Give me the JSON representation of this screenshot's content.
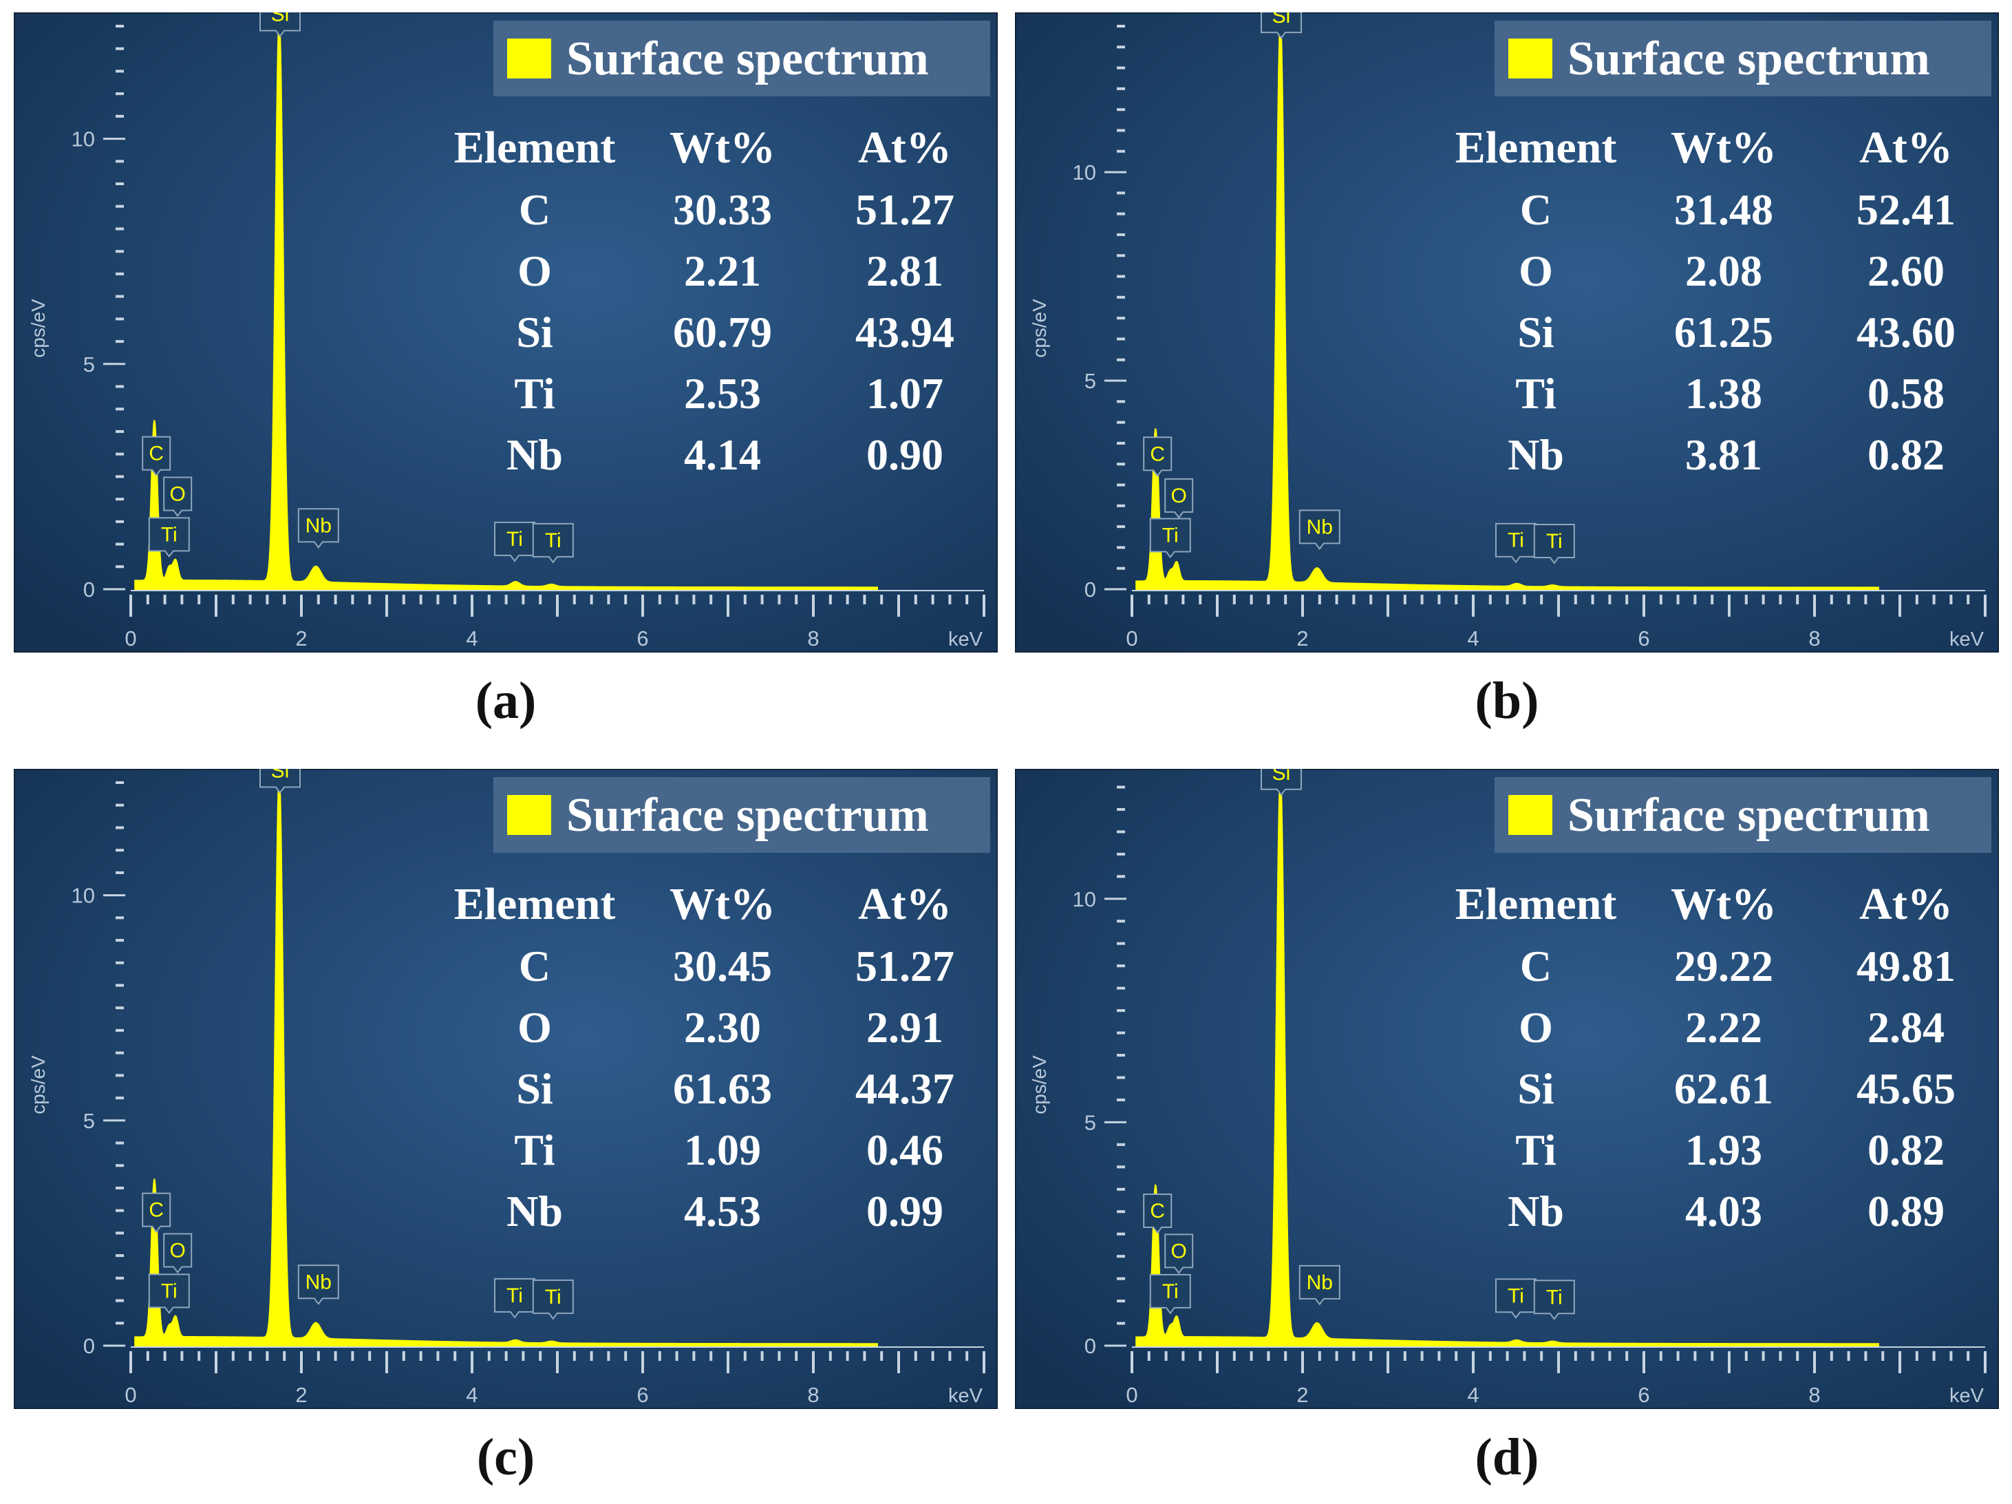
{
  "colors": {
    "background_center": "#2f5c8c",
    "background_edge": "#143254",
    "spectrum": "#ffff00",
    "legend_box": "#4a6a8e",
    "tag_fill": "#1d3f62",
    "tag_stroke": "#8fa6bd"
  },
  "chart_data": [
    {
      "id": "a",
      "type": "line",
      "caption": "(a)",
      "legend": "Surface spectrum",
      "xlabel": "keV",
      "ylabel": "cps/eV",
      "xlim": [
        0,
        10
      ],
      "ylim": [
        0,
        12.5
      ],
      "x_ticks": [
        "0",
        "2",
        "4",
        "6",
        "8"
      ],
      "y_ticks": [
        "0",
        "5",
        "10"
      ],
      "peaks": [
        {
          "label": "C",
          "x": 0.277,
          "y": 3.55,
          "width": 0.035
        },
        {
          "label": "O",
          "x": 0.525,
          "y": 0.45,
          "width": 0.03
        },
        {
          "label": "Ti",
          "x": 0.452,
          "y": 0.3,
          "width": 0.03
        },
        {
          "label": "Si",
          "x": 1.74,
          "y": 12.5,
          "width": 0.045
        },
        {
          "label": "Nb",
          "x": 2.17,
          "y": 0.35,
          "width": 0.06
        },
        {
          "label": "Ti",
          "x": 4.51,
          "y": 0.1,
          "width": 0.05
        },
        {
          "label": "Ti",
          "x": 4.93,
          "y": 0.05,
          "width": 0.05
        }
      ],
      "peak_tags": [
        {
          "label": "C",
          "x": 0.3,
          "y": 2.65
        },
        {
          "label": "O",
          "x": 0.55,
          "y": 1.75
        },
        {
          "label": "Ti",
          "x": 0.45,
          "y": 0.85
        },
        {
          "label": "Si",
          "x": 1.75,
          "y": 12.4
        },
        {
          "label": "Nb",
          "x": 2.2,
          "y": 1.05
        },
        {
          "label": "Ti",
          "x": 4.5,
          "y": 0.75
        },
        {
          "label": "Ti",
          "x": 4.95,
          "y": 0.72
        }
      ],
      "table": {
        "headers": [
          "Element",
          "Wt%",
          "At%"
        ],
        "rows": [
          [
            "C",
            "30.33",
            "51.27"
          ],
          [
            "O",
            "2.21",
            "2.81"
          ],
          [
            "Si",
            "60.79",
            "43.94"
          ],
          [
            "Ti",
            "2.53",
            "1.07"
          ],
          [
            "Nb",
            "4.14",
            "0.90"
          ]
        ]
      }
    },
    {
      "id": "b",
      "type": "line",
      "caption": "(b)",
      "legend": "Surface spectrum",
      "xlabel": "keV",
      "ylabel": "cps/eV",
      "xlim": [
        0,
        10
      ],
      "ylim": [
        0,
        13.5
      ],
      "x_ticks": [
        "0",
        "2",
        "4",
        "6",
        "8"
      ],
      "y_ticks": [
        "0",
        "5",
        "10"
      ],
      "peaks": [
        {
          "label": "C",
          "x": 0.277,
          "y": 3.65,
          "width": 0.035
        },
        {
          "label": "O",
          "x": 0.525,
          "y": 0.45,
          "width": 0.03
        },
        {
          "label": "Ti",
          "x": 0.452,
          "y": 0.25,
          "width": 0.03
        },
        {
          "label": "Si",
          "x": 1.74,
          "y": 13.5,
          "width": 0.045
        },
        {
          "label": "Nb",
          "x": 2.17,
          "y": 0.35,
          "width": 0.06
        },
        {
          "label": "Ti",
          "x": 4.51,
          "y": 0.07,
          "width": 0.05
        },
        {
          "label": "Ti",
          "x": 4.93,
          "y": 0.04,
          "width": 0.05
        }
      ],
      "peak_tags": [
        {
          "label": "C",
          "x": 0.3,
          "y": 2.85
        },
        {
          "label": "O",
          "x": 0.55,
          "y": 1.85
        },
        {
          "label": "Ti",
          "x": 0.45,
          "y": 0.9
        },
        {
          "label": "Si",
          "x": 1.75,
          "y": 13.35
        },
        {
          "label": "Nb",
          "x": 2.2,
          "y": 1.1
        },
        {
          "label": "Ti",
          "x": 4.5,
          "y": 0.78
        },
        {
          "label": "Ti",
          "x": 4.95,
          "y": 0.76
        }
      ],
      "table": {
        "headers": [
          "Element",
          "Wt%",
          "At%"
        ],
        "rows": [
          [
            "C",
            "31.48",
            "52.41"
          ],
          [
            "O",
            "2.08",
            "2.60"
          ],
          [
            "Si",
            "61.25",
            "43.60"
          ],
          [
            "Ti",
            "1.38",
            "0.58"
          ],
          [
            "Nb",
            "3.81",
            "0.82"
          ]
        ]
      }
    },
    {
      "id": "c",
      "type": "line",
      "caption": "(c)",
      "legend": "Surface spectrum",
      "xlabel": "keV",
      "ylabel": "cps/eV",
      "xlim": [
        0,
        10
      ],
      "ylim": [
        0,
        12.5
      ],
      "x_ticks": [
        "0",
        "2",
        "4",
        "6",
        "8"
      ],
      "y_ticks": [
        "0",
        "5",
        "10"
      ],
      "peaks": [
        {
          "label": "C",
          "x": 0.277,
          "y": 3.5,
          "width": 0.035
        },
        {
          "label": "O",
          "x": 0.525,
          "y": 0.45,
          "width": 0.03
        },
        {
          "label": "Ti",
          "x": 0.452,
          "y": 0.25,
          "width": 0.03
        },
        {
          "label": "Si",
          "x": 1.74,
          "y": 12.5,
          "width": 0.045
        },
        {
          "label": "Nb",
          "x": 2.17,
          "y": 0.35,
          "width": 0.06
        },
        {
          "label": "Ti",
          "x": 4.51,
          "y": 0.06,
          "width": 0.05
        },
        {
          "label": "Ti",
          "x": 4.93,
          "y": 0.04,
          "width": 0.05
        }
      ],
      "peak_tags": [
        {
          "label": "C",
          "x": 0.3,
          "y": 2.65
        },
        {
          "label": "O",
          "x": 0.55,
          "y": 1.75
        },
        {
          "label": "Ti",
          "x": 0.45,
          "y": 0.85
        },
        {
          "label": "Si",
          "x": 1.75,
          "y": 12.4
        },
        {
          "label": "Nb",
          "x": 2.2,
          "y": 1.05
        },
        {
          "label": "Ti",
          "x": 4.5,
          "y": 0.75
        },
        {
          "label": "Ti",
          "x": 4.95,
          "y": 0.72
        }
      ],
      "table": {
        "headers": [
          "Element",
          "Wt%",
          "At%"
        ],
        "rows": [
          [
            "C",
            "30.45",
            "51.27"
          ],
          [
            "O",
            "2.30",
            "2.91"
          ],
          [
            "Si",
            "61.63",
            "44.37"
          ],
          [
            "Ti",
            "1.09",
            "0.46"
          ],
          [
            "Nb",
            "4.53",
            "0.99"
          ]
        ]
      }
    },
    {
      "id": "d",
      "type": "line",
      "caption": "(d)",
      "legend": "Surface spectrum",
      "xlabel": "keV",
      "ylabel": "cps/eV",
      "xlim": [
        0,
        10
      ],
      "ylim": [
        0,
        12.6
      ],
      "x_ticks": [
        "0",
        "2",
        "4",
        "6",
        "8"
      ],
      "y_ticks": [
        "0",
        "5",
        "10"
      ],
      "peaks": [
        {
          "label": "C",
          "x": 0.277,
          "y": 3.4,
          "width": 0.035
        },
        {
          "label": "O",
          "x": 0.525,
          "y": 0.45,
          "width": 0.03
        },
        {
          "label": "Ti",
          "x": 0.452,
          "y": 0.25,
          "width": 0.03
        },
        {
          "label": "Si",
          "x": 1.74,
          "y": 12.6,
          "width": 0.045
        },
        {
          "label": "Nb",
          "x": 2.17,
          "y": 0.35,
          "width": 0.06
        },
        {
          "label": "Ti",
          "x": 4.51,
          "y": 0.06,
          "width": 0.05
        },
        {
          "label": "Ti",
          "x": 4.93,
          "y": 0.04,
          "width": 0.05
        }
      ],
      "peak_tags": [
        {
          "label": "C",
          "x": 0.3,
          "y": 2.65
        },
        {
          "label": "O",
          "x": 0.55,
          "y": 1.75
        },
        {
          "label": "Ti",
          "x": 0.45,
          "y": 0.85
        },
        {
          "label": "Si",
          "x": 1.75,
          "y": 12.45
        },
        {
          "label": "Nb",
          "x": 2.2,
          "y": 1.05
        },
        {
          "label": "Ti",
          "x": 4.5,
          "y": 0.75
        },
        {
          "label": "Ti",
          "x": 4.95,
          "y": 0.72
        }
      ],
      "table": {
        "headers": [
          "Element",
          "Wt%",
          "At%"
        ],
        "rows": [
          [
            "C",
            "29.22",
            "49.81"
          ],
          [
            "O",
            "2.22",
            "2.84"
          ],
          [
            "Si",
            "62.61",
            "45.65"
          ],
          [
            "Ti",
            "1.93",
            "0.82"
          ],
          [
            "Nb",
            "4.03",
            "0.89"
          ]
        ]
      }
    }
  ]
}
